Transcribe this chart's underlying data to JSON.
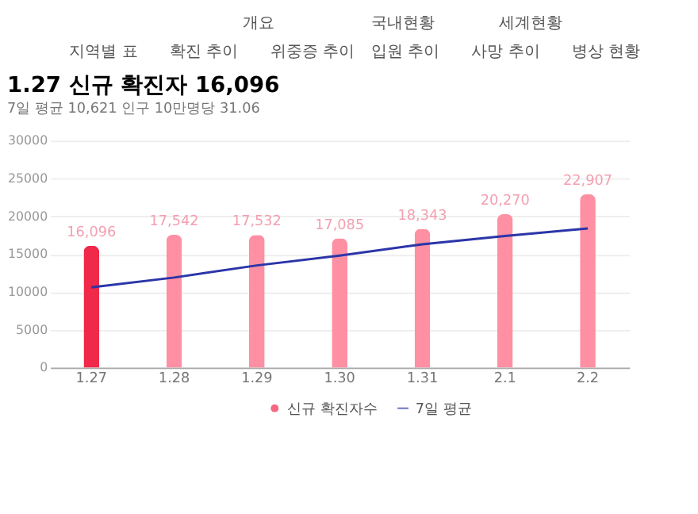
{
  "chart_data": {
    "type": "bar",
    "title": "1.27 신규 확진자 16,096",
    "subtitle": "7일 평균 10,621  인구 10만명당 31.06",
    "annotations": [
      "개요",
      "국내현황",
      "세계현황",
      "지역별 표",
      "확진 추이",
      "위중증 추이",
      "입원 추이",
      "사망 추이",
      "병상 현황"
    ],
    "categories": [
      "1.27",
      "1.28",
      "1.29",
      "1.30",
      "1.31",
      "2.1",
      "2.2"
    ],
    "series": [
      {
        "name": "신규 확진자수",
        "color": "#f0284a",
        "colors": [
          "#f0284a",
          "#ff8fa3",
          "#ff8fa3",
          "#ff8fa3",
          "#ff8fa3",
          "#ff8fa3",
          "#ff8fa3"
        ],
        "values": [
          16096,
          17542,
          17532,
          17085,
          18343,
          20270,
          22907
        ],
        "value_labels": [
          "16,096",
          "17,542",
          "17,532",
          "17,085",
          "18,343",
          "20,270",
          "22,907"
        ]
      },
      {
        "name": "7일 평균",
        "type": "line",
        "color": "#2b35a8",
        "values": [
          10600,
          11900,
          13500,
          14800,
          16300,
          17400,
          18400
        ]
      }
    ],
    "ylim": [
      0,
      30000
    ],
    "yticks": [
      0,
      5000,
      10000,
      15000,
      20000,
      25000,
      30000
    ],
    "grid": "y",
    "legend": "bottom"
  }
}
